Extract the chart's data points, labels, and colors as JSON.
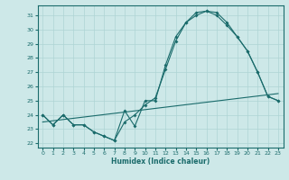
{
  "xlabel": "Humidex (Indice chaleur)",
  "xlim": [
    -0.5,
    23.5
  ],
  "ylim": [
    21.7,
    31.7
  ],
  "yticks": [
    22,
    23,
    24,
    25,
    26,
    27,
    28,
    29,
    30,
    31
  ],
  "xticks": [
    0,
    1,
    2,
    3,
    4,
    5,
    6,
    7,
    8,
    9,
    10,
    11,
    12,
    13,
    14,
    15,
    16,
    17,
    18,
    19,
    20,
    21,
    22,
    23
  ],
  "bg_color": "#cde8e8",
  "line_color": "#1a6b6b",
  "grid_color": "#aed4d4",
  "series1_x": [
    0,
    1,
    2,
    3,
    4,
    5,
    6,
    7,
    8,
    9,
    10,
    11,
    12,
    13,
    14,
    15,
    16,
    17,
    18,
    19,
    20,
    21,
    22,
    23
  ],
  "series1_y": [
    24.0,
    23.3,
    24.0,
    23.3,
    23.3,
    22.8,
    22.5,
    22.2,
    24.3,
    23.2,
    25.0,
    25.0,
    27.5,
    29.5,
    30.5,
    31.0,
    31.3,
    31.2,
    30.5,
    29.5,
    28.5,
    27.0,
    25.3,
    25.0
  ],
  "series2_x": [
    0,
    1,
    2,
    3,
    4,
    5,
    6,
    7,
    8,
    9,
    10,
    11,
    12,
    13,
    14,
    15,
    16,
    17,
    18,
    19,
    20,
    21,
    22,
    23
  ],
  "series2_y": [
    24.0,
    23.3,
    24.0,
    23.3,
    23.3,
    22.8,
    22.5,
    22.2,
    23.5,
    24.0,
    24.7,
    25.2,
    27.2,
    29.2,
    30.5,
    31.2,
    31.3,
    31.0,
    30.3,
    29.5,
    28.5,
    27.0,
    25.3,
    25.0
  ],
  "series3_x": [
    0,
    23
  ],
  "series3_y": [
    23.5,
    25.5
  ]
}
